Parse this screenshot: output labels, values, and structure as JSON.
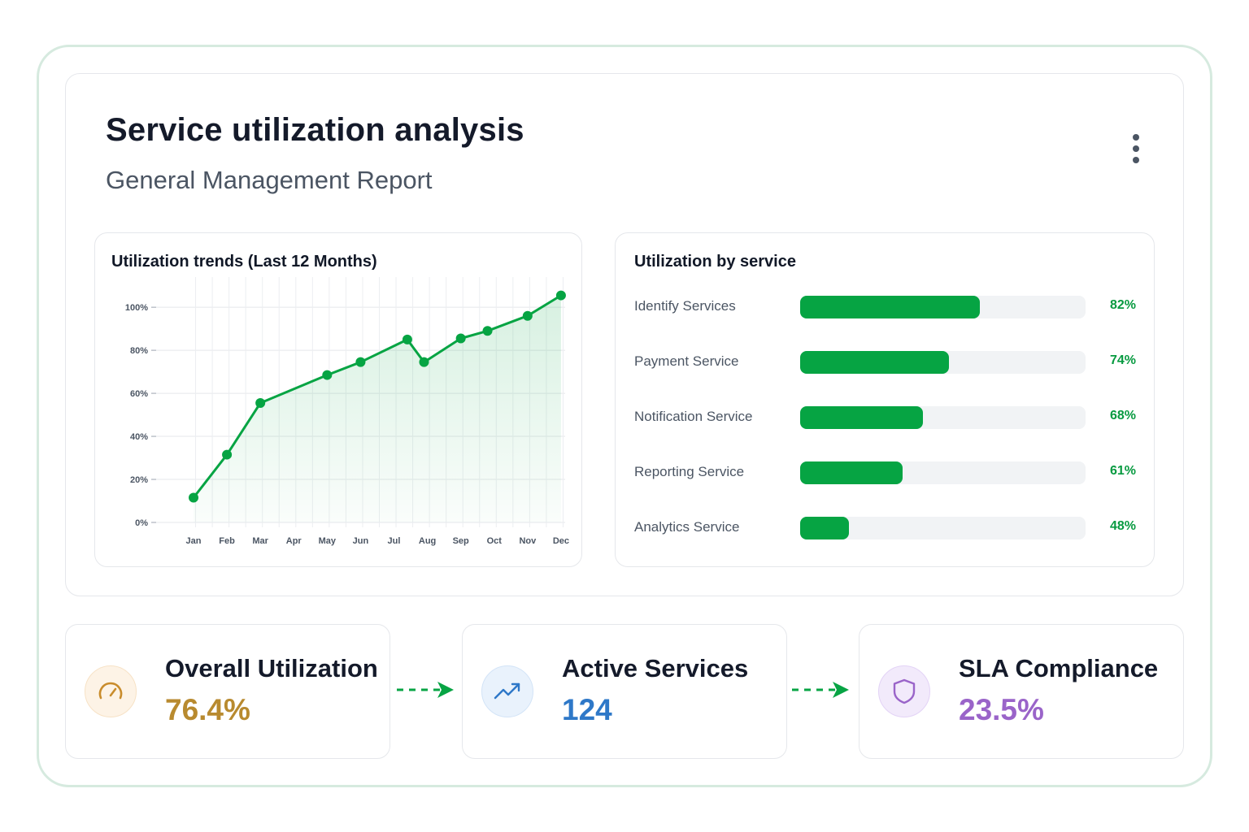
{
  "header": {
    "title": "Service utilization analysis",
    "subtitle": "General Management Report",
    "more_icon": "more-vertical-icon"
  },
  "trend_panel": {
    "title": "Utilization trends (Last 12 Months)"
  },
  "service_panel": {
    "title": "Utilization by service",
    "items": [
      {
        "label": "Identify Services",
        "percent_label": "82%",
        "fill_fraction": 0.63
      },
      {
        "label": "Payment Service",
        "percent_label": "74%",
        "fill_fraction": 0.52
      },
      {
        "label": "Notification Service",
        "percent_label": "68%",
        "fill_fraction": 0.43
      },
      {
        "label": "Reporting Service",
        "percent_label": "61%",
        "fill_fraction": 0.36
      },
      {
        "label": "Analytics Service",
        "percent_label": "48%",
        "fill_fraction": 0.17
      }
    ]
  },
  "kpis": [
    {
      "label": "Overall Utilization",
      "value": "76.4%",
      "icon": "gauge-icon",
      "color": "#b88a2f"
    },
    {
      "label": "Active Services",
      "value": "124",
      "icon": "trending-up-icon",
      "color": "#2e78c8"
    },
    {
      "label": "SLA Compliance",
      "value": "23.5%",
      "icon": "shield-icon",
      "color": "#9a64c9"
    }
  ],
  "colors": {
    "accent_green": "#06a443",
    "frame_border": "#d6eadf"
  },
  "chart_data": {
    "type": "area",
    "title": "Utilization trends (Last 12 Months)",
    "categories": [
      "Jan",
      "Feb",
      "Mar",
      "Apr",
      "May",
      "Jun",
      "Jul",
      "Aug",
      "Sep",
      "Oct",
      "Nov",
      "Dec"
    ],
    "x": [
      1,
      2,
      3,
      5,
      6,
      7.4,
      7.9,
      9,
      9.8,
      11,
      12
    ],
    "y": [
      11.5,
      31.5,
      55.5,
      68.5,
      74.5,
      85,
      74.5,
      85.5,
      89,
      96,
      105.5
    ],
    "y_tick_labels": [
      "0%",
      "20%",
      "40%",
      "60%",
      "80%",
      "100%"
    ],
    "y_ticks": [
      0,
      20,
      40,
      60,
      80,
      100
    ],
    "ylim": [
      0,
      111
    ],
    "xlim": [
      1,
      13
    ],
    "grid": true,
    "color": "#06a443"
  }
}
